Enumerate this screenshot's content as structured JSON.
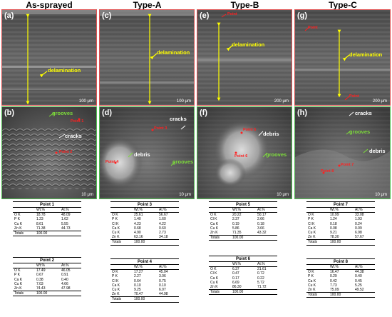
{
  "columns": [
    {
      "title": "As-sprayed"
    },
    {
      "title": "Type-A"
    },
    {
      "title": "Type-B"
    },
    {
      "title": "Type-C"
    }
  ],
  "panels": {
    "a": {
      "label": "(a)",
      "scale": "100 μm",
      "delam": "delamination"
    },
    "b": {
      "label": "(b)",
      "scale": "10 μm",
      "grooves": "grooves",
      "cracks": "cracks",
      "point1": "Point 1",
      "point2": "Point 2"
    },
    "c": {
      "label": "(c)",
      "scale": "100 μm",
      "delam": "delamination"
    },
    "d": {
      "label": "(d)",
      "scale": "10 μm",
      "cracks": "cracks",
      "debris": "debris",
      "grooves": "grooves",
      "point3": "Point 3",
      "point4": "Point 4"
    },
    "e": {
      "label": "(e)",
      "scale": "200 μm",
      "delam": "delamination",
      "point": "Point"
    },
    "f": {
      "label": "(f)",
      "scale": "10 μm",
      "debris": "debris",
      "grooves": "grooves",
      "point5": "Point 5",
      "point6": "Point 6"
    },
    "g": {
      "label": "(g)",
      "scale": "200 μm",
      "delam": "delamination",
      "point": "Point",
      "point2": "Point"
    },
    "h": {
      "label": "(h)",
      "scale": "10 μm",
      "cracks": "cracks",
      "grooves": "grooves",
      "debris": "debris",
      "point7": "Point 7",
      "point8": "Point 8"
    }
  },
  "tables": {
    "t1": {
      "caption": "Point 1",
      "h1": "Wt.%",
      "h2": "At.%",
      "rows": [
        [
          "O K",
          "18.78",
          "48.09"
        ],
        [
          "P K",
          "1.23",
          "1.62"
        ],
        [
          "Cu K",
          "8.61",
          "5.55"
        ],
        [
          "Zn K",
          "71.38",
          "44.73"
        ]
      ],
      "total": [
        "Totals",
        "100.00"
      ]
    },
    "t2": {
      "caption": "Point 2",
      "h1": "Wt.%",
      "h2": "At.%",
      "rows": [
        [
          "O K",
          "17.49",
          "46.05"
        ],
        [
          "P K",
          "0.67",
          "0.91"
        ],
        [
          "Ca K",
          "0.38",
          "0.40"
        ],
        [
          "Cu K",
          "7.03",
          "4.66"
        ],
        [
          "Zn K",
          "74.43",
          "47.98"
        ]
      ],
      "total": [
        "Totals",
        "100.00"
      ]
    },
    "t3": {
      "caption": "Point 3",
      "h1": "Wt.%",
      "h2": "At.%",
      "rows": [
        [
          "O K",
          "25.61",
          "56.67"
        ],
        [
          "P K",
          "1.40",
          "1.60"
        ],
        [
          "Cl K",
          "4.23",
          "4.22"
        ],
        [
          "Ca K",
          "0.68",
          "0.60"
        ],
        [
          "Cu K",
          "4.90",
          "2.73"
        ],
        [
          "Zn K",
          "63.16",
          "34.18"
        ]
      ],
      "total": [
        "Totals",
        "100.00"
      ]
    },
    "t4": {
      "caption": "Point 4",
      "h1": "Wt.%",
      "h2": "At.%",
      "rows": [
        [
          "O K",
          "17.27",
          "45.04"
        ],
        [
          "P K",
          "2.27",
          "3.06"
        ],
        [
          "Cl K",
          "0.64",
          "0.75"
        ],
        [
          "Ca K",
          "0.10",
          "0.10"
        ],
        [
          "Cu K",
          "9.25",
          "6.07"
        ],
        [
          "Zn K",
          "70.47",
          "44.98"
        ]
      ],
      "total": [
        "Totals",
        "100.00"
      ]
    },
    "t5": {
      "caption": "Point 5",
      "h1": "Wt.%",
      "h2": "At.%",
      "rows": [
        [
          "O K",
          "20.22",
          "50.17"
        ],
        [
          "Cl K",
          "2.37",
          "2.66"
        ],
        [
          "Ca K",
          "0.19",
          "0.18"
        ],
        [
          "Cu K",
          "5.86",
          "3.66"
        ],
        [
          "Zn K",
          "71.35",
          "43.32"
        ]
      ],
      "total": [
        "Totals",
        "100.00"
      ]
    },
    "t6": {
      "caption": "Point 6",
      "h1": "Wt.%",
      "h2": "At.%",
      "rows": [
        [
          "O K",
          "6.37",
          "21.61"
        ],
        [
          "Cl K",
          "0.47",
          "0.72"
        ],
        [
          "Ca K",
          "0.17",
          "0.22"
        ],
        [
          "Cu K",
          "6.69",
          "5.72"
        ],
        [
          "Zn K",
          "86.30",
          "71.72"
        ]
      ],
      "total": [
        "Totals",
        "100.00"
      ]
    },
    "t7": {
      "caption": "Point 7",
      "h1": "Wt.%",
      "h2": "At.%",
      "rows": [
        [
          "O K",
          "10.99",
          "33.08"
        ],
        [
          "P K",
          "1.24",
          "1.93"
        ],
        [
          "Cl K",
          "0.18",
          "0.24"
        ],
        [
          "Ca K",
          "0.08",
          "0.09"
        ],
        [
          "Cu K",
          "9.21",
          "6.98"
        ],
        [
          "Zn K",
          "78.30",
          "57.67"
        ]
      ],
      "total": [
        "Totals",
        "100.00"
      ]
    },
    "t8": {
      "caption": "Point 8",
      "h1": "Wt.%",
      "h2": "At.%",
      "rows": [
        [
          "O K",
          "16.47",
          "44.38"
        ],
        [
          "P K",
          "0.29",
          "0.40"
        ],
        [
          "Ca K",
          "0.42",
          "0.45"
        ],
        [
          "Cu K",
          "7.73",
          "5.25"
        ],
        [
          "Zn K",
          "75.09",
          "49.52"
        ]
      ],
      "total": [
        "Totals",
        "100.00"
      ]
    }
  }
}
